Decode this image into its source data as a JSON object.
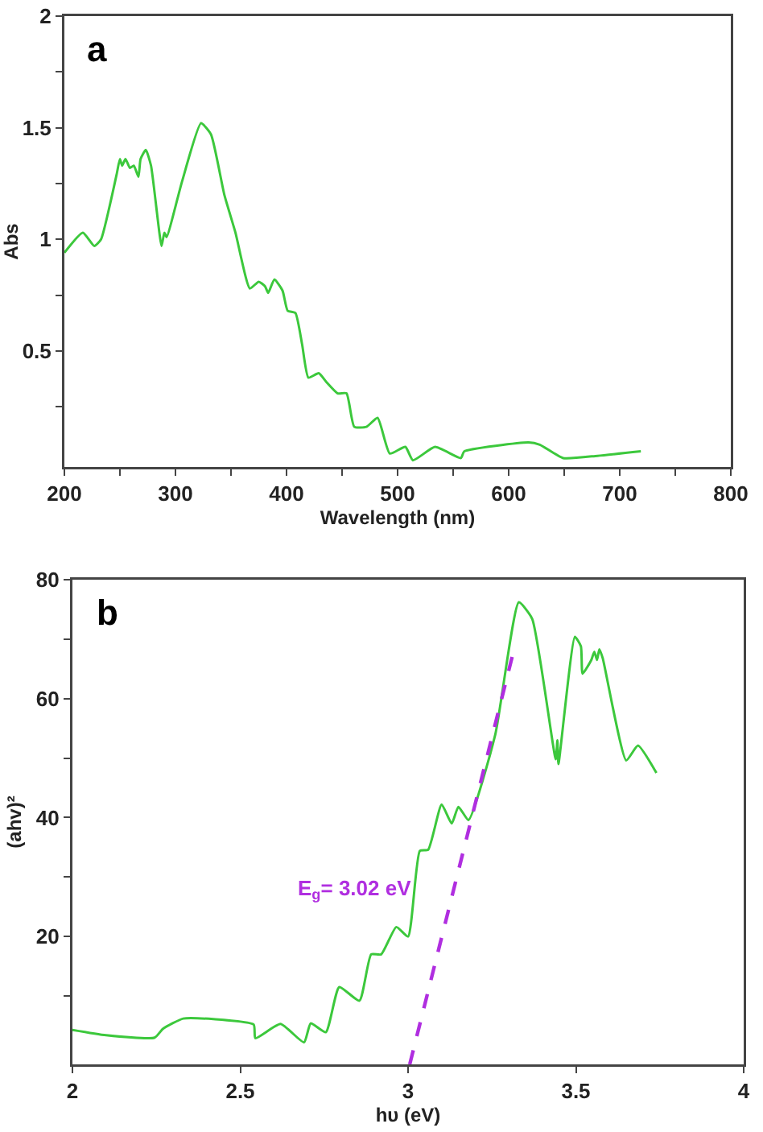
{
  "chart_data": [
    {
      "type": "line",
      "title": "a",
      "xlabel": "Wavelength (nm)",
      "ylabel": "Abs",
      "xlim": [
        200,
        800
      ],
      "ylim": [
        -0.02,
        2
      ],
      "xticks": [
        200,
        {
          "value": 250,
          "label": null
        },
        300,
        {
          "value": 350,
          "label": null
        },
        400,
        {
          "value": 450,
          "label": null
        },
        500,
        {
          "value": 550,
          "label": null
        },
        600,
        {
          "value": 650,
          "label": null
        },
        700,
        {
          "value": 750,
          "label": null
        },
        800
      ],
      "yticks": [
        {
          "value": 0.25,
          "label": null
        },
        0.5,
        {
          "value": 0.75,
          "label": null
        },
        1,
        {
          "value": 1.25,
          "label": null
        },
        1.5,
        {
          "value": 1.75,
          "label": null
        },
        2
      ],
      "grid": false,
      "marker": "none",
      "line_style": "solid",
      "series": [
        {
          "color": "#3cc83c",
          "x": [
            200,
            216.6,
            227,
            233,
            247,
            250,
            252,
            255,
            259,
            262.5,
            266.7,
            268.6,
            273.3,
            278,
            287.5,
            290,
            292,
            306,
            323,
            332,
            344,
            354,
            367,
            375,
            380.6,
            383.5,
            389,
            396.4,
            401,
            408,
            414,
            419.7,
            429,
            436,
            446,
            454,
            461,
            472,
            482,
            493,
            507,
            513.8,
            533.7,
            557,
            560,
            618,
            628,
            649,
            680,
            719
          ],
          "values": [
            0.94,
            1.03,
            0.97,
            1.0,
            1.29,
            1.36,
            1.33,
            1.36,
            1.32,
            1.33,
            1.28,
            1.36,
            1.4,
            1.33,
            0.97,
            1.03,
            1.01,
            1.26,
            1.52,
            1.47,
            1.2,
            1.03,
            0.78,
            0.81,
            0.79,
            0.76,
            0.82,
            0.77,
            0.68,
            0.67,
            0.53,
            0.38,
            0.4,
            0.36,
            0.31,
            0.31,
            0.16,
            0.16,
            0.2,
            0.04,
            0.07,
            0.01,
            0.07,
            0.02,
            0.05,
            0.09,
            0.08,
            0.02,
            0.03,
            0.05
          ]
        }
      ]
    },
    {
      "type": "line",
      "title": "b",
      "xlabel": "hυ (eV)",
      "ylabel": "(ahv)²",
      "xlim": [
        2,
        4
      ],
      "ylim": [
        -1.5,
        80
      ],
      "xticks": [
        2,
        2.5,
        3,
        3.5,
        4
      ],
      "yticks": [
        {
          "value": 10,
          "label": null
        },
        20,
        {
          "value": 30,
          "label": null
        },
        40,
        {
          "value": 50,
          "label": null
        },
        60,
        {
          "value": 70,
          "label": null
        },
        80
      ],
      "grid": false,
      "marker": "none",
      "line_style": "solid",
      "annotations": [
        "E$_{g}$= 3.02 eV"
      ],
      "series": [
        {
          "color": "#3cc83c",
          "x": [
            2.0,
            2.1,
            2.245,
            2.27,
            2.33,
            2.42,
            2.54,
            2.545,
            2.62,
            2.69,
            2.71,
            2.755,
            2.795,
            2.855,
            2.89,
            2.92,
            2.965,
            3.0,
            3.035,
            3.06,
            3.1,
            3.13,
            3.15,
            3.18,
            3.26,
            3.33,
            3.37,
            3.44,
            3.445,
            3.448,
            3.497,
            3.515,
            3.52,
            3.546,
            3.555,
            3.563,
            3.57,
            3.58,
            3.65,
            3.685,
            3.74
          ],
          "values": [
            4.3,
            3.4,
            3.0,
            4.5,
            6.2,
            6.1,
            5.2,
            2.9,
            5.3,
            2.2,
            5.4,
            3.9,
            11.5,
            9.2,
            17.0,
            17.0,
            21.6,
            20.0,
            34.4,
            34.6,
            42.2,
            39.0,
            41.8,
            39.6,
            54,
            76.2,
            73.4,
            49.8,
            53,
            49,
            70.4,
            68.8,
            64.2,
            66.5,
            67.9,
            66.5,
            68.3,
            66.8,
            49.6,
            52.1,
            47.5
          ]
        },
        {
          "type": "line",
          "color": "#b02ee0",
          "line_style": "dashed",
          "x": [
            3.005,
            3.31
          ],
          "values": [
            -1.5,
            67
          ]
        }
      ]
    }
  ]
}
